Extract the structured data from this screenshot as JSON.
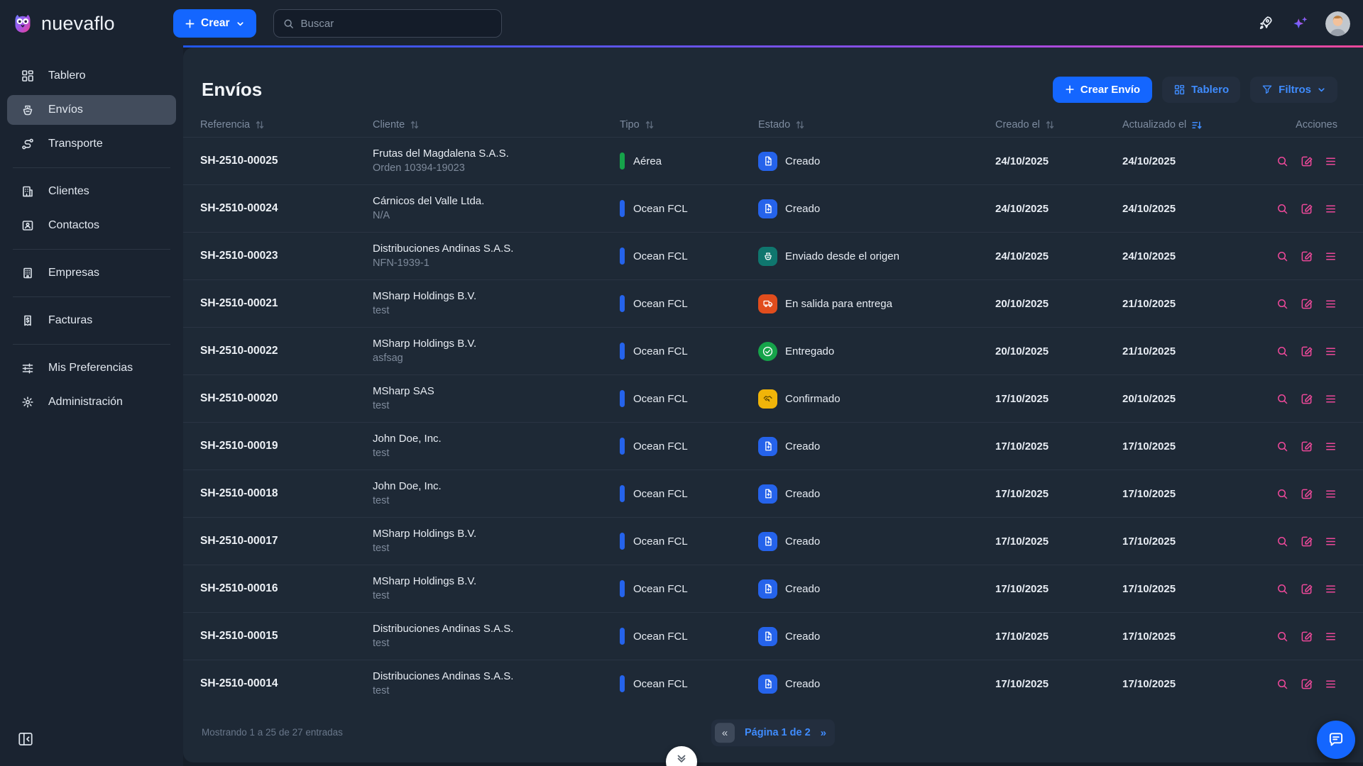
{
  "brand": {
    "name": "nuevaflo"
  },
  "topbar": {
    "create_label": "Crear",
    "search_placeholder": "Buscar"
  },
  "sidebar": {
    "items": [
      {
        "label": "Tablero",
        "icon": "grid-icon",
        "active": false
      },
      {
        "label": "Envíos",
        "icon": "ship-icon",
        "active": true
      },
      {
        "label": "Transporte",
        "icon": "route-icon",
        "active": false
      },
      {
        "divider": true
      },
      {
        "label": "Clientes",
        "icon": "building-icon",
        "active": false
      },
      {
        "label": "Contactos",
        "icon": "contact-card-icon",
        "active": false
      },
      {
        "divider": true
      },
      {
        "label": "Empresas",
        "icon": "office-icon",
        "active": false
      },
      {
        "divider": true
      },
      {
        "label": "Facturas",
        "icon": "invoice-icon",
        "active": false
      },
      {
        "divider": true
      },
      {
        "label": "Mis Preferencias",
        "icon": "sliders-icon",
        "active": false
      },
      {
        "label": "Administración",
        "icon": "gear-icon",
        "active": false
      }
    ]
  },
  "page": {
    "title": "Envíos",
    "create_button": "Crear Envío",
    "board_button": "Tablero",
    "filters_button": "Filtros"
  },
  "table": {
    "columns": [
      {
        "label": "Referencia",
        "sort": "both"
      },
      {
        "label": "Cliente",
        "sort": "both"
      },
      {
        "label": "Tipo",
        "sort": "both"
      },
      {
        "label": "Estado",
        "sort": "both"
      },
      {
        "label": "Creado el",
        "sort": "both"
      },
      {
        "label": "Actualizado el",
        "sort": "desc"
      },
      {
        "label": "Acciones",
        "sort": "none"
      }
    ],
    "rows": [
      {
        "reference": "SH-2510-00025",
        "client": "Frutas del Magdalena S.A.S.",
        "client_sub": "Orden 10394-19023",
        "type": "Aérea",
        "type_kind": "air",
        "status": "Creado",
        "status_kind": "created",
        "created": "24/10/2025",
        "updated": "24/10/2025"
      },
      {
        "reference": "SH-2510-00024",
        "client": "Cárnicos del Valle Ltda.",
        "client_sub": "N/A",
        "type": "Ocean FCL",
        "type_kind": "ocean",
        "status": "Creado",
        "status_kind": "created",
        "created": "24/10/2025",
        "updated": "24/10/2025"
      },
      {
        "reference": "SH-2510-00023",
        "client": "Distribuciones Andinas S.A.S.",
        "client_sub": "NFN-1939-1",
        "type": "Ocean FCL",
        "type_kind": "ocean",
        "status": "Enviado desde el origen",
        "status_kind": "shipped",
        "created": "24/10/2025",
        "updated": "24/10/2025"
      },
      {
        "reference": "SH-2510-00021",
        "client": "MSharp Holdings B.V.",
        "client_sub": "test",
        "type": "Ocean FCL",
        "type_kind": "ocean",
        "status": "En salida para entrega",
        "status_kind": "out_for_delivery",
        "created": "20/10/2025",
        "updated": "21/10/2025"
      },
      {
        "reference": "SH-2510-00022",
        "client": "MSharp Holdings B.V.",
        "client_sub": "asfsag",
        "type": "Ocean FCL",
        "type_kind": "ocean",
        "status": "Entregado",
        "status_kind": "delivered",
        "created": "20/10/2025",
        "updated": "21/10/2025"
      },
      {
        "reference": "SH-2510-00020",
        "client": "MSharp SAS",
        "client_sub": "test",
        "type": "Ocean FCL",
        "type_kind": "ocean",
        "status": "Confirmado",
        "status_kind": "confirmed",
        "created": "17/10/2025",
        "updated": "20/10/2025"
      },
      {
        "reference": "SH-2510-00019",
        "client": "John Doe, Inc.",
        "client_sub": "test",
        "type": "Ocean FCL",
        "type_kind": "ocean",
        "status": "Creado",
        "status_kind": "created",
        "created": "17/10/2025",
        "updated": "17/10/2025"
      },
      {
        "reference": "SH-2510-00018",
        "client": "John Doe, Inc.",
        "client_sub": "test",
        "type": "Ocean FCL",
        "type_kind": "ocean",
        "status": "Creado",
        "status_kind": "created",
        "created": "17/10/2025",
        "updated": "17/10/2025"
      },
      {
        "reference": "SH-2510-00017",
        "client": "MSharp Holdings B.V.",
        "client_sub": "test",
        "type": "Ocean FCL",
        "type_kind": "ocean",
        "status": "Creado",
        "status_kind": "created",
        "created": "17/10/2025",
        "updated": "17/10/2025"
      },
      {
        "reference": "SH-2510-00016",
        "client": "MSharp Holdings B.V.",
        "client_sub": "test",
        "type": "Ocean FCL",
        "type_kind": "ocean",
        "status": "Creado",
        "status_kind": "created",
        "created": "17/10/2025",
        "updated": "17/10/2025"
      },
      {
        "reference": "SH-2510-00015",
        "client": "Distribuciones Andinas S.A.S.",
        "client_sub": "test",
        "type": "Ocean FCL",
        "type_kind": "ocean",
        "status": "Creado",
        "status_kind": "created",
        "created": "17/10/2025",
        "updated": "17/10/2025"
      },
      {
        "reference": "SH-2510-00014",
        "client": "Distribuciones Andinas S.A.S.",
        "client_sub": "test",
        "type": "Ocean FCL",
        "type_kind": "ocean",
        "status": "Creado",
        "status_kind": "created",
        "created": "17/10/2025",
        "updated": "17/10/2025"
      }
    ],
    "row_actions": [
      {
        "icon": "search-icon"
      },
      {
        "icon": "edit-icon"
      },
      {
        "icon": "menu-icon"
      }
    ]
  },
  "footer": {
    "showing": "Mostrando 1 a 25 de 27 entradas",
    "prev_symbol": "«",
    "page_label": "Página 1 de 2",
    "next_symbol": "»"
  },
  "colors": {
    "accent_blue": "#1466ff",
    "link_blue": "#3f8cff",
    "action_pink": "#ec4899",
    "type": {
      "air": "#16a34a",
      "ocean": "#2563eb"
    },
    "status": {
      "created": "#2563eb",
      "shipped": "#0f766e",
      "out_for_delivery": "#e14d1d",
      "delivered": "#16a34a",
      "confirmed": "#f0b409"
    },
    "status_glyph": {
      "created": "#ffffff",
      "shipped": "#ffffff",
      "out_for_delivery": "#ffffff",
      "delivered": "#ffffff",
      "confirmed": "#5f4700"
    }
  }
}
